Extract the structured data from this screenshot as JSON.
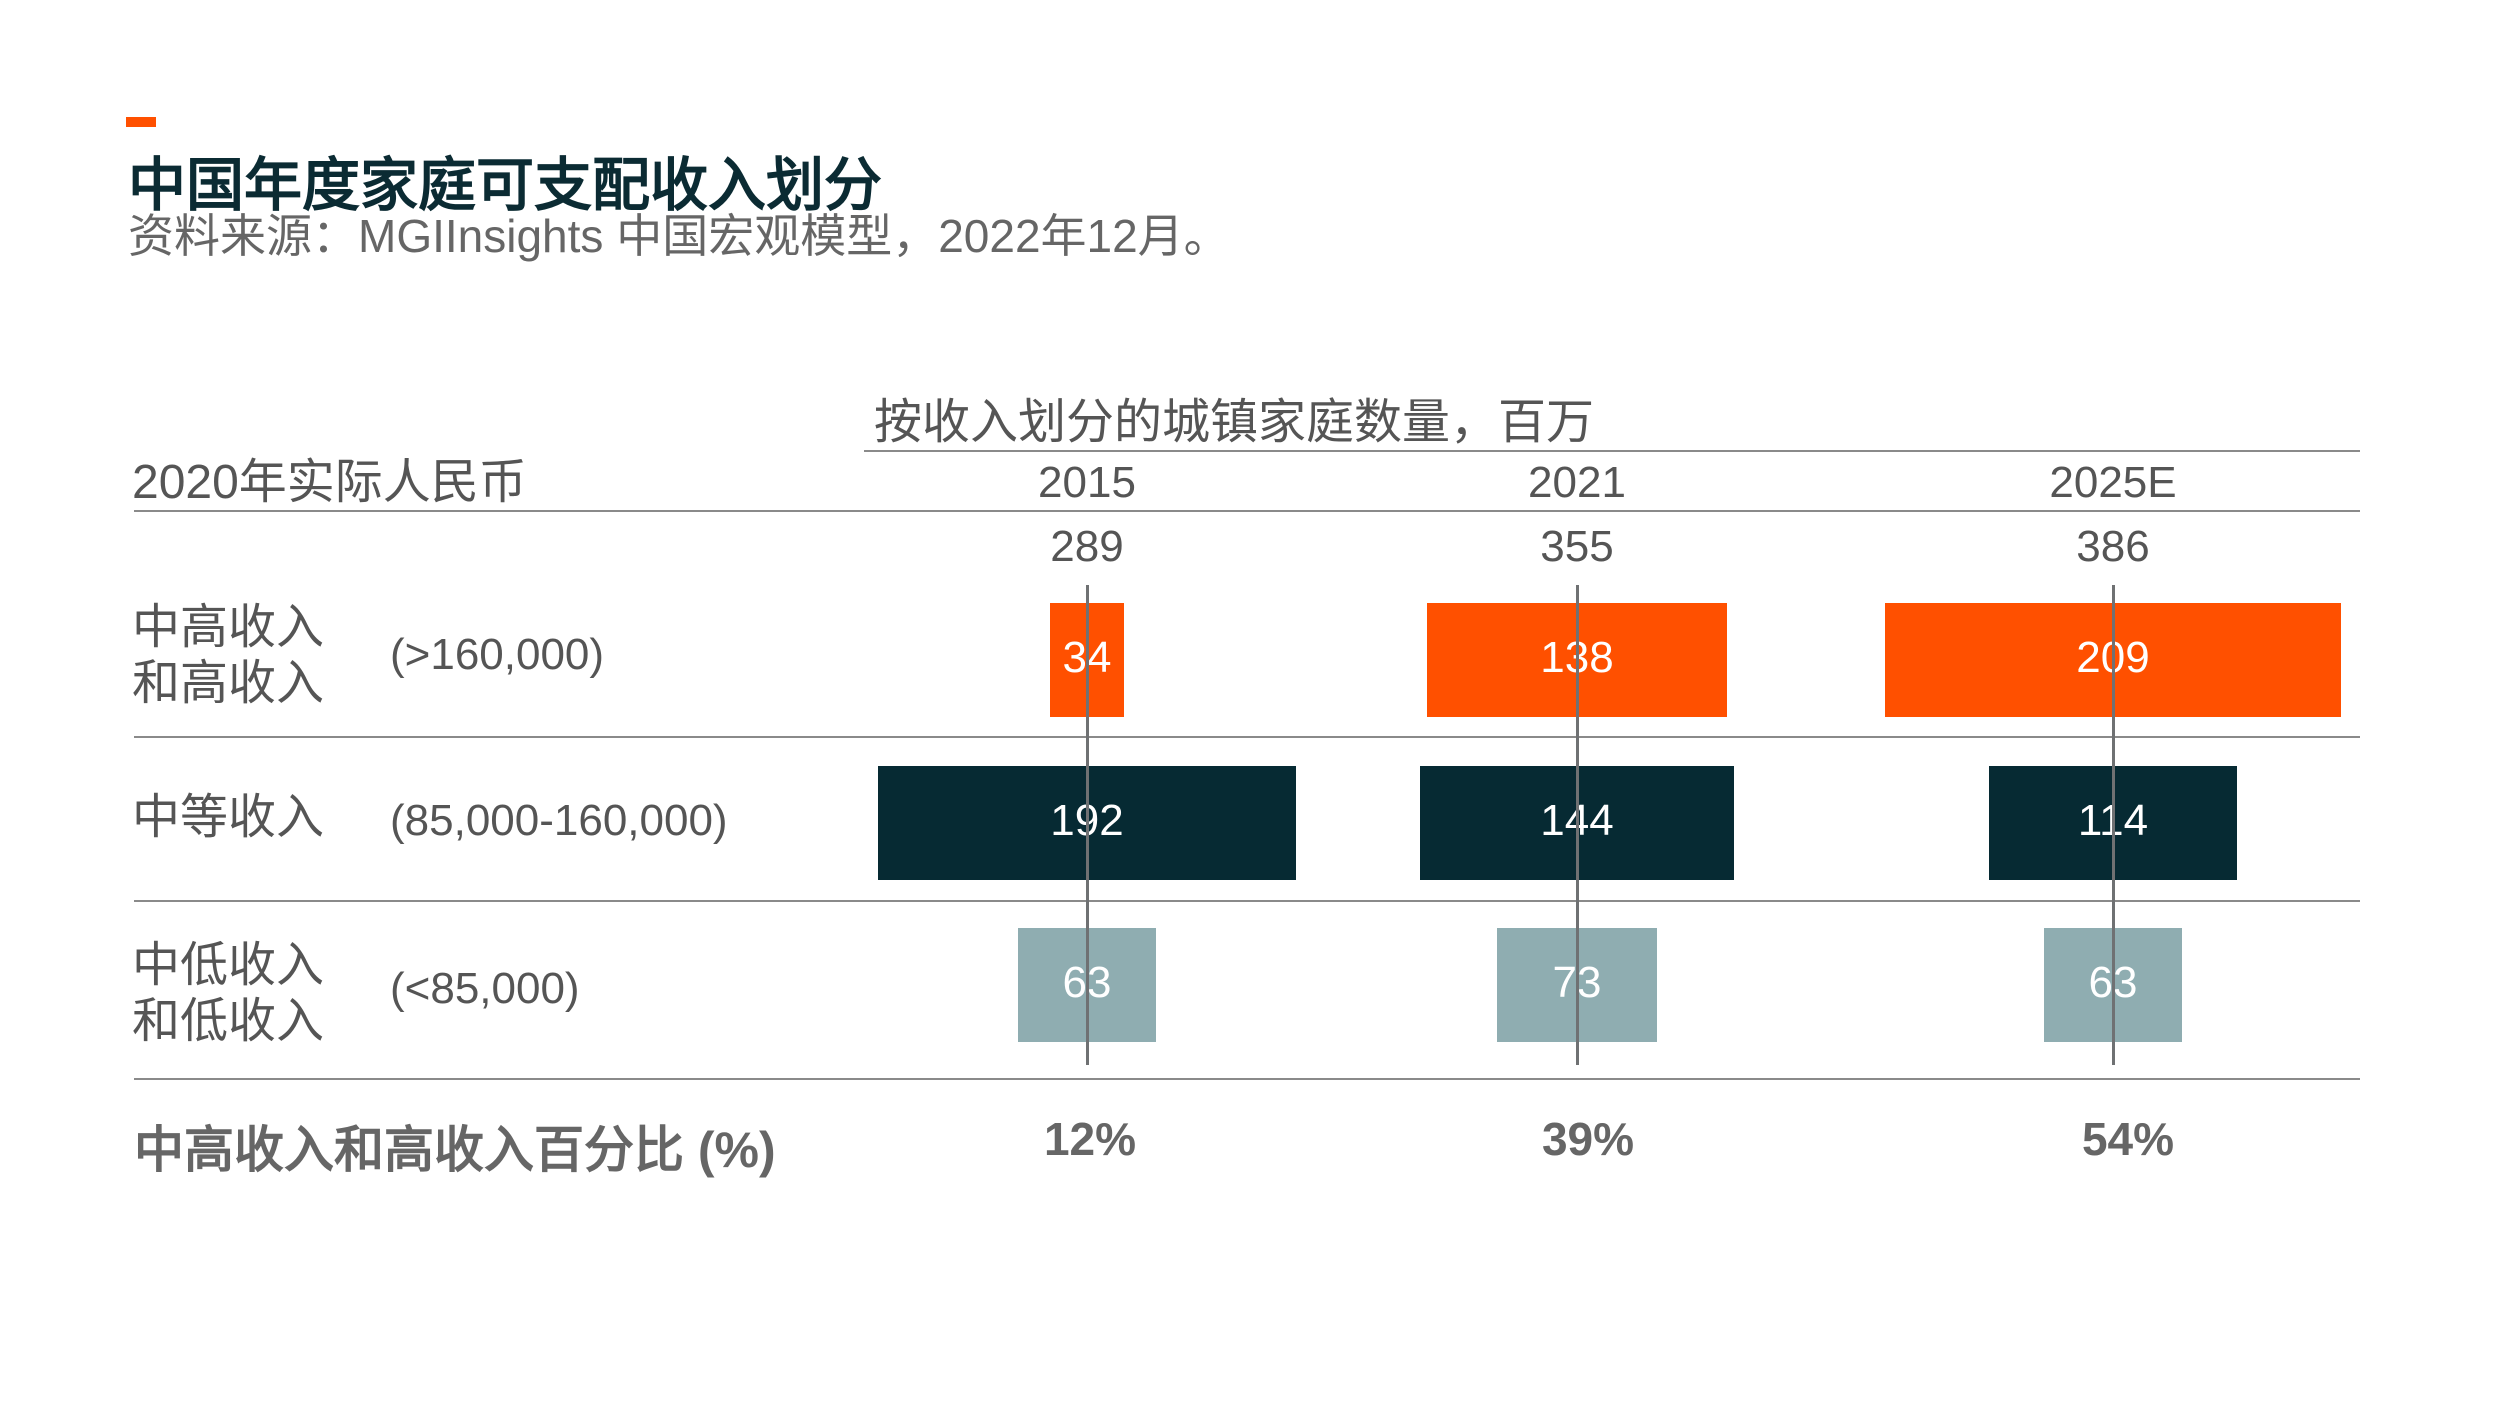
{
  "header": {
    "title": "中国年度家庭可支配收入划分",
    "source": "资料来源：MGIInsights 中国宏观模型，2022年12月。",
    "accent_color": "#ff5000"
  },
  "table": {
    "unit_label": "2020年实际人民币",
    "group_header": "按收入划分的城镇家庭数量，百万",
    "footer_label": "中高收入和高收入百分比 (%)"
  },
  "chart_data": {
    "type": "bar",
    "title": "中国年度家庭可支配收入划分",
    "categories": [
      "2015",
      "2021",
      "2025E"
    ],
    "totals": [
      "289",
      "355",
      "386"
    ],
    "series": [
      {
        "name": "中高收入和高收入",
        "range": "(>160,000)",
        "color": "#ff5000",
        "values": [
          34,
          138,
          209
        ]
      },
      {
        "name": "中等收入",
        "range": "(85,000-160,000)",
        "color": "#062a33",
        "values": [
          192,
          144,
          114
        ]
      },
      {
        "name": "中低收入和低收入",
        "range": "(<85,000)",
        "color": "#8fadb1",
        "values": [
          63,
          73,
          63
        ]
      }
    ],
    "shares": [
      "12%",
      "39%",
      "54%"
    ]
  }
}
